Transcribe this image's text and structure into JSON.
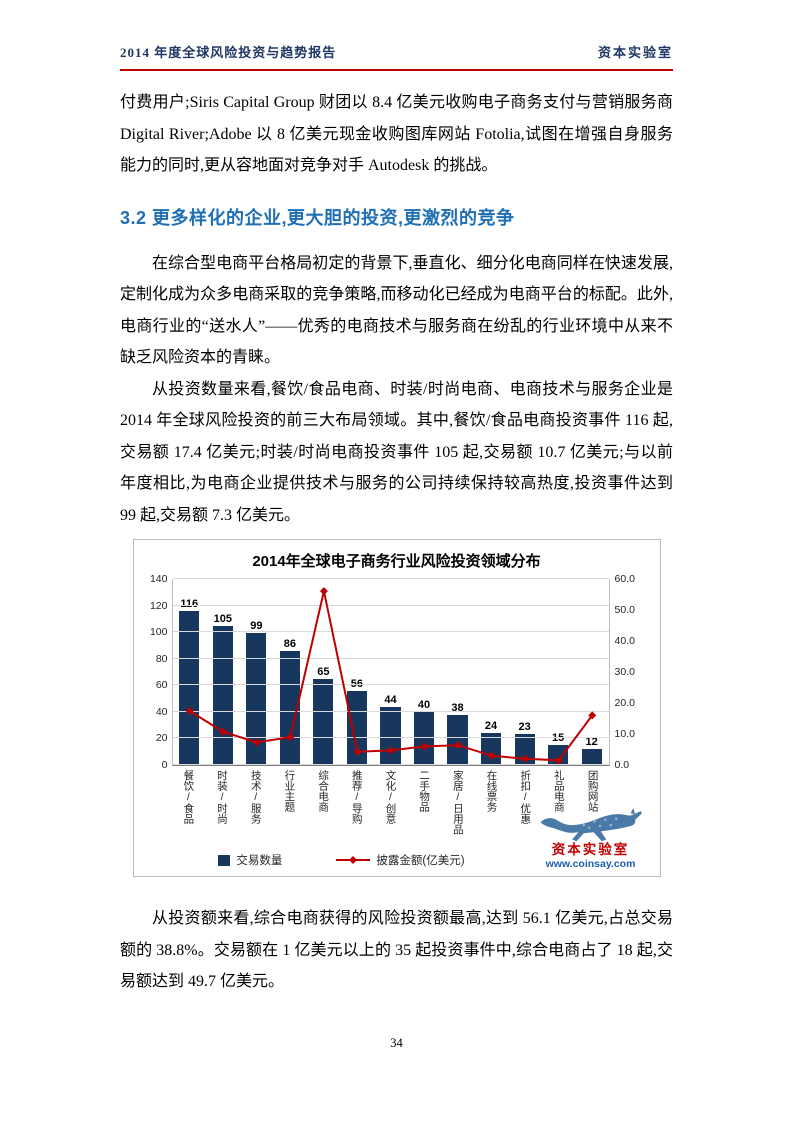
{
  "header": {
    "left": "2014 年度全球风险投资与趋势报告",
    "right": "资本实验室"
  },
  "colors": {
    "accent_red": "#C00000",
    "heading_blue": "#1F6FB5",
    "header_navy": "#1F3864"
  },
  "paragraphs": {
    "p1": "付费用户;Siris Capital Group 财团以 8.4 亿美元收购电子商务支付与营销服务商 Digital River;Adobe 以 8 亿美元现金收购图库网站 Fotolia,试图在增强自身服务能力的同时,更从容地面对竞争对手 Autodesk 的挑战。",
    "section_heading": "3.2 更多样化的企业,更大胆的投资,更激烈的竞争",
    "p2": "在综合型电商平台格局初定的背景下,垂直化、细分化电商同样在快速发展,定制化成为众多电商采取的竞争策略,而移动化已经成为电商平台的标配。此外,电商行业的“送水人”——优秀的电商技术与服务商在纷乱的行业环境中从来不缺乏风险资本的青睐。",
    "p3": "从投资数量来看,餐饮/食品电商、时装/时尚电商、电商技术与服务企业是 2014 年全球风险投资的前三大布局领域。其中,餐饮/食品电商投资事件 116 起,交易额 17.4 亿美元;时装/时尚电商投资事件 105 起,交易额 10.7 亿美元;与以前年度相比,为电商企业提供技术与服务的公司持续保持较高热度,投资事件达到 99 起,交易额 7.3 亿美元。",
    "p4": "从投资额来看,综合电商获得的风险投资额最高,达到 56.1 亿美元,占总交易额的 38.8%。交易额在 1 亿美元以上的 35 起投资事件中,综合电商占了 18 起,交易额达到 49.7 亿美元。"
  },
  "chart_data": {
    "type": "bar",
    "title": "2014年全球电子商务行业风险投资领域分布",
    "categories": [
      "餐饮/食品",
      "时装/时尚",
      "技术/服务",
      "行业主题",
      "综合电商",
      "推荐/导购",
      "文化/创意",
      "二手物品",
      "家居/日用品",
      "在线票务",
      "折扣/优惠",
      "礼品电商",
      "团购网站"
    ],
    "series": [
      {
        "name": "交易数量",
        "type": "bar",
        "axis": "left",
        "color": "#17375E",
        "values": [
          116,
          105,
          99,
          86,
          65,
          56,
          44,
          40,
          38,
          24,
          23,
          15,
          12
        ]
      },
      {
        "name": "披露金额(亿美元)",
        "type": "line",
        "axis": "right",
        "color": "#C00000",
        "values": [
          17.4,
          10.7,
          7.3,
          9.0,
          56.1,
          4.3,
          4.7,
          6.0,
          6.4,
          3.0,
          2.0,
          1.5,
          16.0
        ]
      }
    ],
    "left_axis": {
      "min": 0,
      "max": 140,
      "step": 20
    },
    "right_axis": {
      "min": 0,
      "max": 60,
      "step": 10
    },
    "grid": true,
    "legend_position": "bottom"
  },
  "watermark": {
    "brand": "资本实验室",
    "url": "www.coinsay.com"
  },
  "footer": {
    "page_number": "34"
  }
}
